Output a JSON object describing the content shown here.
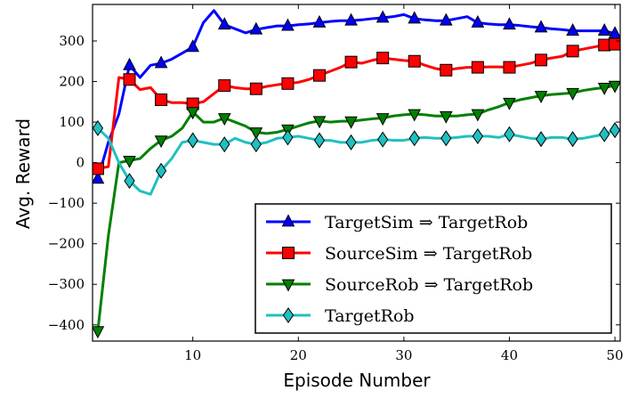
{
  "chart_data": {
    "type": "line",
    "xlabel": "Episode Number",
    "ylabel": "Avg. Reward",
    "xlim": [
      0.5,
      50.5
    ],
    "ylim": [
      -440,
      390
    ],
    "x_ticks": [
      10,
      20,
      30,
      40,
      50
    ],
    "x_tick_labels": [
      "10",
      "20",
      "30",
      "40",
      "50"
    ],
    "y_ticks": [
      -400,
      -300,
      -200,
      -100,
      0,
      100,
      200,
      300
    ],
    "y_tick_labels": [
      "−400",
      "−300",
      "−200",
      "−100",
      "0",
      "100",
      "200",
      "300"
    ],
    "grid": false,
    "legend_position": "lower-right",
    "series": [
      {
        "name": "TargetSim ⇒ TargetRob",
        "color": "#0000ff",
        "marker": "triangle-up",
        "marker_x": [
          1,
          4,
          7,
          10,
          13,
          16,
          19,
          22,
          25,
          28,
          31,
          34,
          37,
          40,
          43,
          46,
          49,
          50
        ],
        "x": [
          1,
          2,
          3,
          4,
          5,
          6,
          7,
          8,
          9,
          10,
          11,
          12,
          13,
          14,
          15,
          16,
          17,
          18,
          19,
          20,
          21,
          22,
          23,
          24,
          25,
          26,
          27,
          28,
          29,
          30,
          31,
          32,
          33,
          34,
          35,
          36,
          37,
          38,
          39,
          40,
          41,
          42,
          43,
          44,
          45,
          46,
          47,
          48,
          49,
          50
        ],
        "y": [
          -40,
          50,
          120,
          240,
          210,
          240,
          245,
          255,
          270,
          285,
          345,
          375,
          340,
          330,
          320,
          328,
          333,
          337,
          337,
          340,
          342,
          345,
          348,
          350,
          350,
          352,
          355,
          357,
          360,
          365,
          355,
          352,
          350,
          350,
          355,
          360,
          345,
          342,
          340,
          340,
          338,
          335,
          333,
          330,
          328,
          325,
          325,
          325,
          325,
          318
        ]
      },
      {
        "name": "SourceSim ⇒ TargetRob",
        "color": "#ff0000",
        "marker": "square",
        "marker_x": [
          1,
          4,
          7,
          10,
          13,
          16,
          19,
          22,
          25,
          28,
          31,
          34,
          37,
          40,
          43,
          46,
          49,
          50
        ],
        "x": [
          1,
          2,
          3,
          4,
          5,
          6,
          7,
          8,
          9,
          10,
          11,
          12,
          13,
          14,
          15,
          16,
          17,
          18,
          19,
          20,
          21,
          22,
          23,
          24,
          25,
          26,
          27,
          28,
          29,
          30,
          31,
          32,
          33,
          34,
          35,
          36,
          37,
          38,
          39,
          40,
          41,
          42,
          43,
          44,
          45,
          46,
          47,
          48,
          49,
          50
        ],
        "y": [
          -15,
          -10,
          210,
          205,
          180,
          185,
          155,
          148,
          148,
          145,
          150,
          170,
          190,
          185,
          182,
          182,
          188,
          192,
          195,
          198,
          205,
          215,
          225,
          235,
          248,
          245,
          252,
          258,
          255,
          252,
          250,
          240,
          232,
          228,
          232,
          235,
          235,
          236,
          236,
          235,
          240,
          245,
          253,
          258,
          262,
          275,
          280,
          285,
          290,
          292
        ]
      },
      {
        "name": "SourceRob ⇒ TargetRob",
        "color": "#008000",
        "marker": "triangle-down",
        "marker_x": [
          1,
          4,
          7,
          10,
          13,
          16,
          19,
          22,
          25,
          28,
          31,
          34,
          37,
          40,
          43,
          46,
          49,
          50
        ],
        "x": [
          1,
          2,
          3,
          4,
          5,
          6,
          7,
          8,
          9,
          10,
          11,
          12,
          13,
          14,
          15,
          16,
          17,
          18,
          19,
          20,
          21,
          22,
          23,
          24,
          25,
          26,
          27,
          28,
          29,
          30,
          31,
          32,
          33,
          34,
          35,
          36,
          37,
          38,
          39,
          40,
          41,
          42,
          43,
          44,
          45,
          46,
          47,
          48,
          49,
          50
        ],
        "y": [
          -415,
          -180,
          0,
          5,
          10,
          35,
          55,
          65,
          85,
          125,
          100,
          100,
          110,
          100,
          90,
          75,
          72,
          75,
          82,
          90,
          98,
          103,
          100,
          102,
          102,
          105,
          108,
          110,
          115,
          118,
          120,
          118,
          115,
          115,
          115,
          118,
          120,
          130,
          138,
          148,
          155,
          160,
          165,
          168,
          170,
          172,
          178,
          182,
          185,
          190
        ]
      },
      {
        "name": "TargetRob",
        "color": "#20c0c0",
        "marker": "diamond",
        "marker_x": [
          1,
          4,
          7,
          10,
          13,
          16,
          19,
          22,
          25,
          28,
          31,
          34,
          37,
          40,
          43,
          46,
          49,
          50
        ],
        "x": [
          1,
          2,
          3,
          4,
          5,
          6,
          7,
          8,
          9,
          10,
          11,
          12,
          13,
          14,
          15,
          16,
          17,
          18,
          19,
          20,
          21,
          22,
          23,
          24,
          25,
          26,
          27,
          28,
          29,
          30,
          31,
          32,
          33,
          34,
          35,
          36,
          37,
          38,
          39,
          40,
          41,
          42,
          43,
          44,
          45,
          46,
          47,
          48,
          49,
          50
        ],
        "y": [
          85,
          60,
          0,
          -45,
          -70,
          -78,
          -20,
          10,
          50,
          55,
          50,
          45,
          45,
          60,
          50,
          45,
          50,
          60,
          62,
          65,
          60,
          55,
          55,
          50,
          50,
          50,
          55,
          57,
          55,
          55,
          60,
          62,
          60,
          60,
          62,
          65,
          65,
          65,
          62,
          70,
          65,
          60,
          58,
          62,
          62,
          58,
          60,
          65,
          70,
          80
        ]
      }
    ]
  }
}
